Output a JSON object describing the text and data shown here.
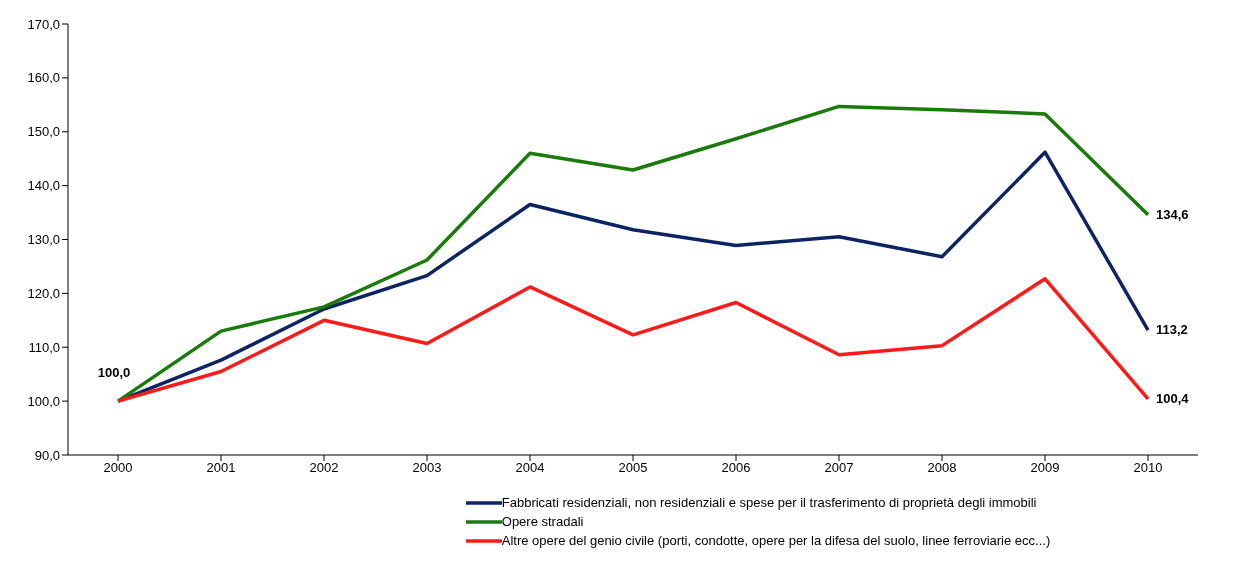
{
  "chart_data": {
    "type": "line",
    "categories": [
      "2000",
      "2001",
      "2002",
      "2003",
      "2004",
      "2005",
      "2006",
      "2007",
      "2008",
      "2009",
      "2010"
    ],
    "series": [
      {
        "name": "Fabbricati residenziali, non residenziali e spese per il trasferimento di proprietà degli immobili",
        "color": "#0c2461",
        "values": [
          100.0,
          107.6,
          117.1,
          123.3,
          136.5,
          131.8,
          128.9,
          130.5,
          126.8,
          146.2,
          113.2
        ],
        "value_labels": [
          "100,0",
          null,
          null,
          null,
          null,
          null,
          null,
          null,
          null,
          null,
          "113,2"
        ]
      },
      {
        "name": "Opere stradali",
        "color": "#1a7a0a",
        "values": [
          100.0,
          113.0,
          117.5,
          126.2,
          146.0,
          142.9,
          148.7,
          154.7,
          154.1,
          153.3,
          134.6
        ],
        "value_labels": [
          null,
          null,
          null,
          null,
          null,
          null,
          null,
          null,
          null,
          null,
          "134,6"
        ]
      },
      {
        "name": "Altre opere del genio civile (porti, condotte, opere per la difesa del suolo, linee ferroviarie ecc...)",
        "color": "#ff1a1a",
        "values": [
          100.0,
          105.5,
          115.0,
          110.7,
          121.2,
          112.3,
          118.3,
          108.6,
          110.3,
          122.7,
          100.4
        ],
        "value_labels": [
          null,
          null,
          null,
          null,
          null,
          null,
          null,
          null,
          null,
          null,
          "100,4"
        ]
      }
    ],
    "ylim": [
      90,
      170
    ],
    "yticks": [
      {
        "value": 90,
        "label": "90,0"
      },
      {
        "value": 100,
        "label": "100,0"
      },
      {
        "value": 110,
        "label": "110,0"
      },
      {
        "value": 120,
        "label": "120,0"
      },
      {
        "value": 130,
        "label": "130,0"
      },
      {
        "value": 140,
        "label": "140,0"
      },
      {
        "value": 150,
        "label": "150,0"
      },
      {
        "value": 160,
        "label": "160,0"
      },
      {
        "value": 170,
        "label": "170,0"
      }
    ],
    "grid": false,
    "legend": "bottom",
    "marker": "none",
    "line_style": "solid"
  }
}
